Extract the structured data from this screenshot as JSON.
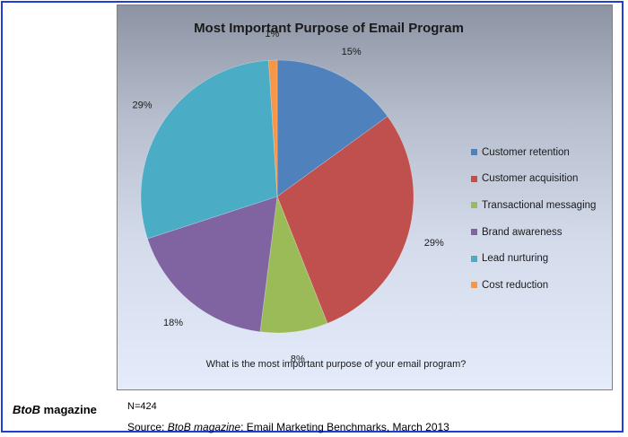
{
  "chart_data": {
    "type": "pie",
    "title": "Most Important Purpose of Email Program",
    "question": "What is the most important purpose of your email program?",
    "slices": [
      {
        "label": "Customer retention",
        "value": 15,
        "display": "15%",
        "color": "#4f81bd"
      },
      {
        "label": "Customer acquisition",
        "value": 29,
        "display": "29%",
        "color": "#c0504d"
      },
      {
        "label": "Transactional messaging",
        "value": 8,
        "display": "8%",
        "color": "#9bbb59"
      },
      {
        "label": "Brand awareness",
        "value": 18,
        "display": "18%",
        "color": "#8064a2"
      },
      {
        "label": "Lead nurturing",
        "value": 29,
        "display": "29%",
        "color": "#4bacc6"
      },
      {
        "label": "Cost reduction",
        "value": 1,
        "display": "1%",
        "color": "#f79646"
      }
    ],
    "legend_position": "right"
  },
  "footer": {
    "publisher_name": "BtoB",
    "publisher_suffix": " magazine",
    "sample_size": "N=424",
    "source_prefix": "Source: ",
    "source_pub": "BtoB magazine",
    "source_rest": ": Email Marketing Benchmarks, March 2013"
  }
}
